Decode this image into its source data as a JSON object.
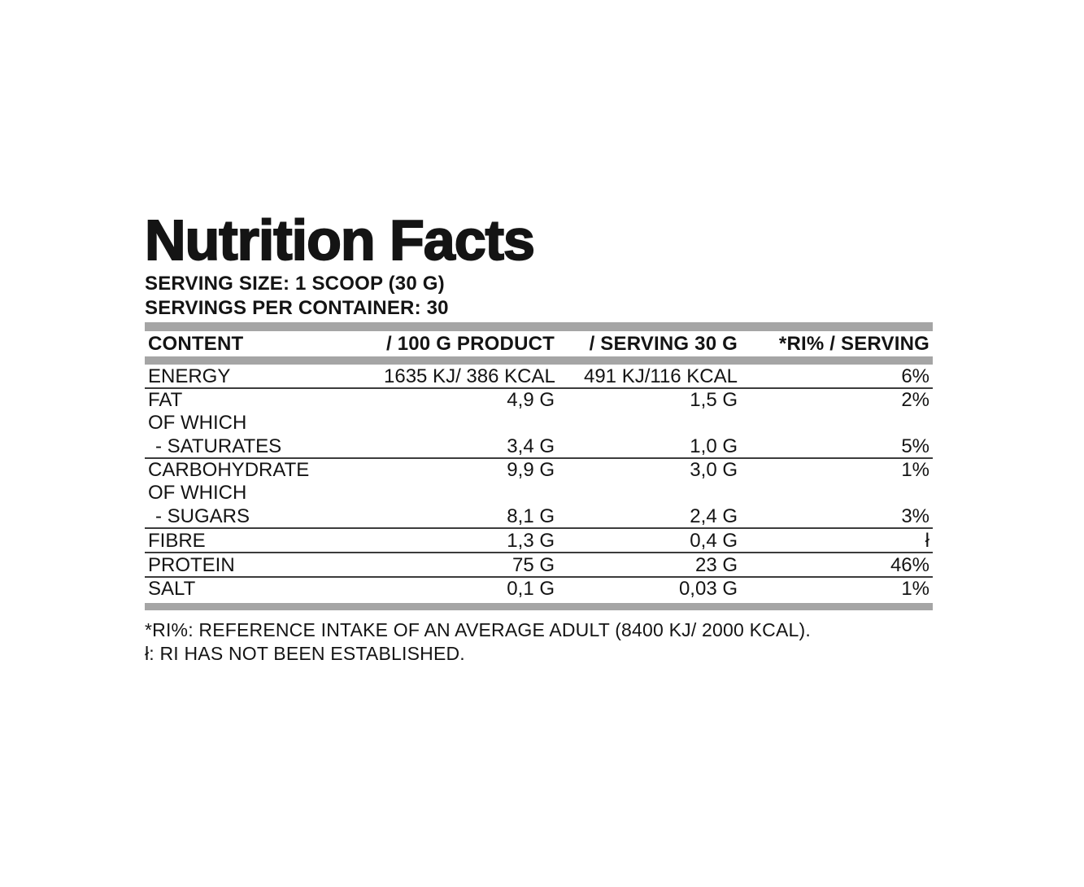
{
  "label": {
    "title": "Nutrition Facts",
    "serving_size": "SERVING SIZE: 1 SCOOP (30 G)",
    "servings_per_container": "SERVINGS PER CONTAINER: 30"
  },
  "table": {
    "headers": [
      "CONTENT",
      "/ 100 G PRODUCT",
      "/ SERVING 30 G",
      "*RI% / SERVING"
    ],
    "rows": [
      {
        "content": "ENERGY",
        "per_100g": "1635 KJ/ 386 KCAL",
        "per_serving": "491 KJ/116 KCAL",
        "ri_serving": "6%",
        "rule": true,
        "indent": false
      },
      {
        "content": "FAT",
        "per_100g": "4,9 G",
        "per_serving": "1,5 G",
        "ri_serving": "2%",
        "rule": false,
        "indent": false
      },
      {
        "content": "OF WHICH",
        "per_100g": "",
        "per_serving": "",
        "ri_serving": "",
        "rule": false,
        "indent": false
      },
      {
        "content": "- SATURATES",
        "per_100g": "3,4 G",
        "per_serving": "1,0 G",
        "ri_serving": "5%",
        "rule": true,
        "indent": true
      },
      {
        "content": "CARBOHYDRATE",
        "per_100g": "9,9 G",
        "per_serving": "3,0 G",
        "ri_serving": "1%",
        "rule": false,
        "indent": false
      },
      {
        "content": "OF WHICH",
        "per_100g": "",
        "per_serving": "",
        "ri_serving": "",
        "rule": false,
        "indent": false
      },
      {
        "content": "- SUGARS",
        "per_100g": "8,1 G",
        "per_serving": "2,4 G",
        "ri_serving": "3%",
        "rule": true,
        "indent": true
      },
      {
        "content": "FIBRE",
        "per_100g": "1,3 G",
        "per_serving": "0,4 G",
        "ri_serving": "ł",
        "rule": true,
        "indent": false
      },
      {
        "content": "PROTEIN",
        "per_100g": "75 G",
        "per_serving": "23 G",
        "ri_serving": "46%",
        "rule": true,
        "indent": false
      },
      {
        "content": "SALT",
        "per_100g": "0,1 G",
        "per_serving": "0,03 G",
        "ri_serving": "1%",
        "rule": false,
        "indent": false
      }
    ]
  },
  "footnotes": [
    "*RI%: REFERENCE INTAKE OF AN AVERAGE ADULT (8400 KJ/ 2000 KCAL).",
    "ł: RI HAS NOT BEEN ESTABLISHED."
  ],
  "colors": {
    "bar_gray": "#a5a5a5",
    "rule_dark": "#3c3c3c",
    "text": "#141414",
    "background": "#ffffff"
  }
}
